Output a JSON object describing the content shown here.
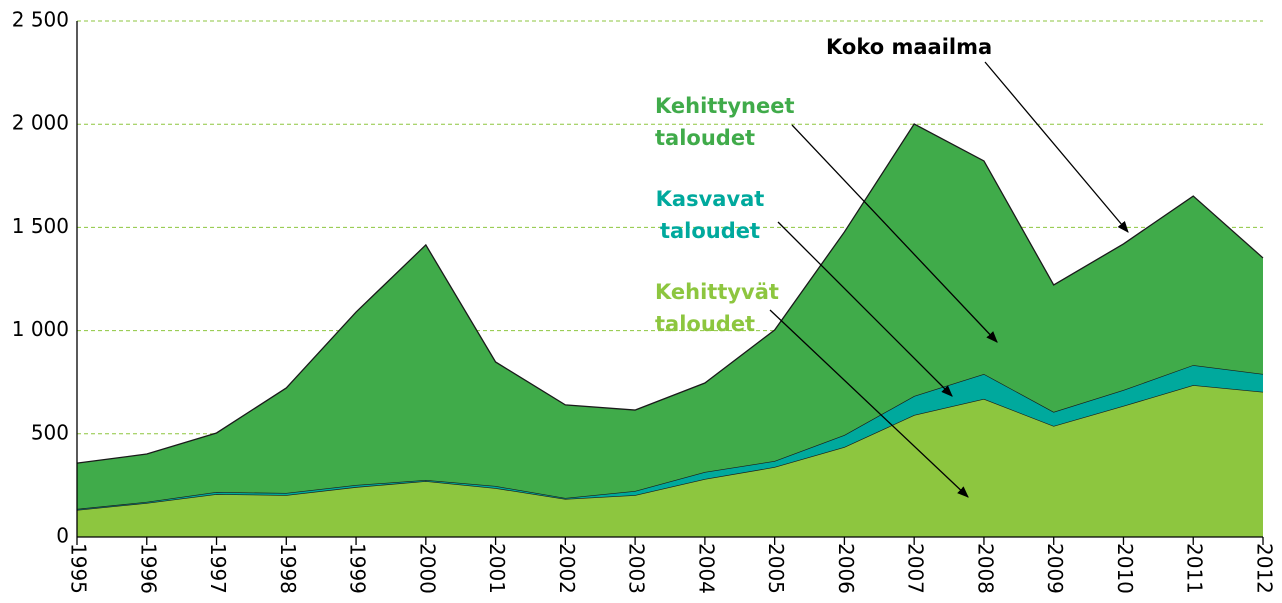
{
  "chart_data": {
    "type": "stacked-area",
    "categories": [
      "1995",
      "1996",
      "1997",
      "1998",
      "1999",
      "2000",
      "2001",
      "2002",
      "2003",
      "2004",
      "2005",
      "2006",
      "2007",
      "2008",
      "2009",
      "2010",
      "2011",
      "2012"
    ],
    "series": [
      {
        "name": "Kehittyvät taloudet",
        "color": "#8dc63f",
        "values": [
          131,
          165,
          208,
          203,
          242,
          271,
          237,
          184,
          203,
          281,
          339,
          436,
          591,
          669,
          538,
          635,
          736,
          703
        ]
      },
      {
        "name": "Kasvavat taloudet",
        "color": "#00a99d",
        "values": [
          5,
          5,
          10,
          10,
          10,
          5,
          10,
          5,
          20,
          34,
          29,
          58,
          92,
          121,
          68,
          77,
          97,
          87
        ]
      },
      {
        "name": "Kehittyneet taloudet",
        "color": "#40ab4a",
        "values": [
          222,
          232,
          286,
          509,
          838,
          1139,
          601,
          451,
          392,
          431,
          635,
          984,
          1318,
          1032,
          615,
          708,
          819,
          562
        ]
      }
    ],
    "annotations": [
      {
        "text": "Koko maailma"
      }
    ],
    "ylim": [
      0,
      2500
    ],
    "yticks": [
      0,
      500,
      {
        "value": 1000,
        "label": "1 000"
      },
      {
        "value": 1500,
        "label": "1 500"
      },
      {
        "value": 2000,
        "label": "2 000"
      },
      {
        "value": 2500,
        "label": "2 500"
      }
    ],
    "grid": true
  }
}
